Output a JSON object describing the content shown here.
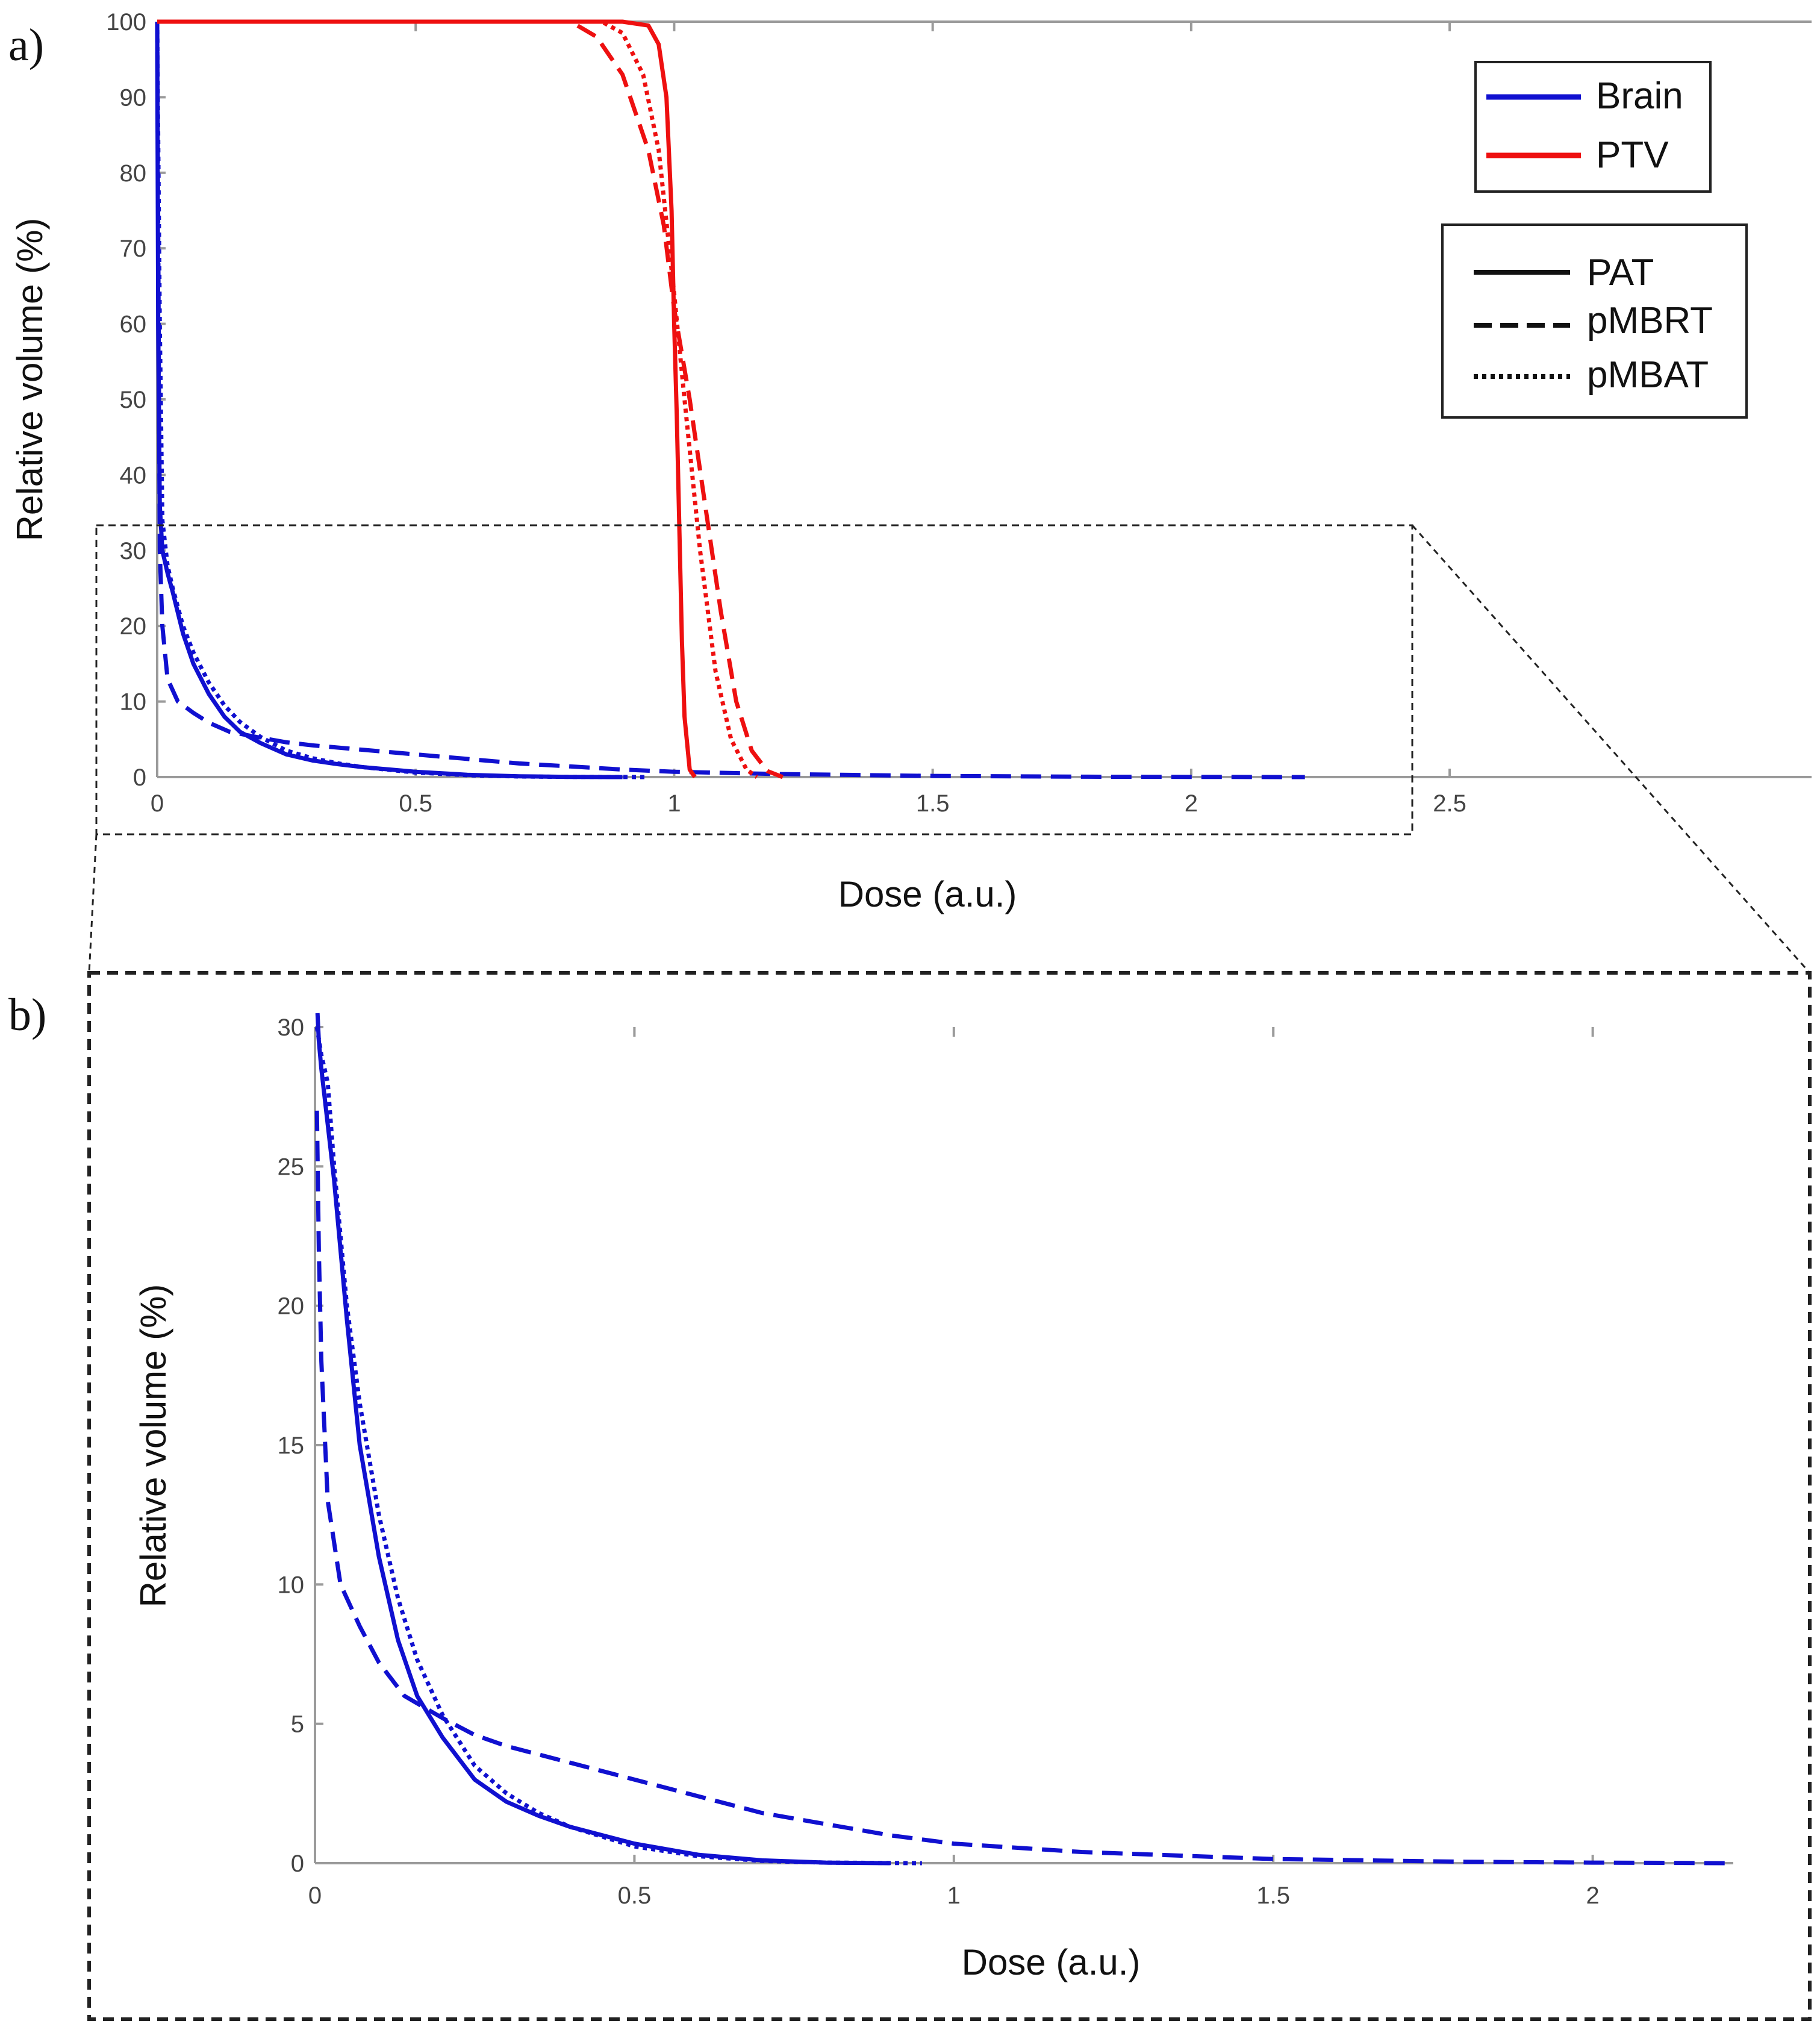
{
  "chart_data": [
    {
      "panel": "a)",
      "type": "line",
      "xlabel": "Dose (a.u.)",
      "ylabel": "Relative volume (%)",
      "xlim": [
        0,
        3.2
      ],
      "ylim": [
        0,
        100
      ],
      "xticks": [
        {
          "v": 0,
          "label": "0"
        },
        {
          "v": 0.5,
          "label": "0.5"
        },
        {
          "v": 1,
          "label": "1"
        },
        {
          "v": 1.5,
          "label": "1.5"
        },
        {
          "v": 2,
          "label": "2"
        },
        {
          "v": 2.5,
          "label": "2.5"
        }
      ],
      "yticks": [
        {
          "v": 0,
          "label": "0"
        },
        {
          "v": 10,
          "label": "10"
        },
        {
          "v": 20,
          "label": "20"
        },
        {
          "v": 30,
          "label": "30"
        },
        {
          "v": 40,
          "label": "40"
        },
        {
          "v": 50,
          "label": "50"
        },
        {
          "v": 60,
          "label": "60"
        },
        {
          "v": 70,
          "label": "70"
        },
        {
          "v": 80,
          "label": "80"
        },
        {
          "v": 90,
          "label": "90"
        },
        {
          "v": 100,
          "label": "100"
        }
      ],
      "legend_structures": [
        {
          "name": "Brain",
          "color": "#1010d0"
        },
        {
          "name": "PTV",
          "color": "#ee1010"
        }
      ],
      "legend_modalities": [
        {
          "name": "PAT",
          "style": "solid"
        },
        {
          "name": "pMBRT",
          "style": "dashed"
        },
        {
          "name": "pMBAT",
          "style": "dotted"
        }
      ],
      "zoom_region": {
        "x": [
          -0.1,
          2.27
        ],
        "y": [
          -8,
          33
        ]
      },
      "series": [
        {
          "name": "Brain PAT",
          "color": "#1010d0",
          "style": "solid",
          "x": [
            0,
            0.002,
            0.005,
            0.01,
            0.02,
            0.03,
            0.05,
            0.07,
            0.1,
            0.13,
            0.16,
            0.2,
            0.25,
            0.3,
            0.35,
            0.4,
            0.5,
            0.6,
            0.7,
            0.8,
            0.9
          ],
          "y": [
            100,
            60,
            36,
            30,
            27,
            24.5,
            19,
            15,
            11,
            8,
            6,
            4.5,
            3,
            2.2,
            1.7,
            1.3,
            0.7,
            0.3,
            0.1,
            0.02,
            0
          ]
        },
        {
          "name": "Brain pMBRT",
          "color": "#1010d0",
          "style": "dashed",
          "x": [
            0,
            0.005,
            0.01,
            0.02,
            0.04,
            0.07,
            0.1,
            0.14,
            0.2,
            0.25,
            0.3,
            0.4,
            0.5,
            0.6,
            0.7,
            0.8,
            0.9,
            1.0,
            1.2,
            1.5,
            1.8,
            2.0,
            2.22
          ],
          "y": [
            100,
            30,
            20,
            13,
            10,
            8.5,
            7.2,
            6,
            5.2,
            4.6,
            4.2,
            3.6,
            3,
            2.4,
            1.8,
            1.4,
            1,
            0.7,
            0.4,
            0.15,
            0.05,
            0.02,
            0
          ]
        },
        {
          "name": "Brain pMBAT",
          "color": "#1010d0",
          "style": "dotted",
          "x": [
            0,
            0.005,
            0.01,
            0.02,
            0.03,
            0.05,
            0.07,
            0.1,
            0.13,
            0.16,
            0.2,
            0.25,
            0.3,
            0.35,
            0.4,
            0.5,
            0.6,
            0.7,
            0.8,
            0.95
          ],
          "y": [
            100,
            60,
            34,
            28,
            25,
            20,
            16.5,
            12.5,
            9.5,
            7.3,
            5.3,
            3.5,
            2.5,
            1.8,
            1.3,
            0.6,
            0.25,
            0.08,
            0.02,
            0
          ]
        },
        {
          "name": "PTV PAT",
          "color": "#ee1010",
          "style": "solid",
          "x": [
            0,
            0.9,
            0.95,
            0.97,
            0.985,
            0.995,
            1.0,
            1.005,
            1.01,
            1.015,
            1.02,
            1.03,
            1.04
          ],
          "y": [
            100,
            100,
            99.5,
            97,
            90,
            75,
            60,
            48,
            33,
            18,
            8,
            1,
            0
          ]
        },
        {
          "name": "PTV pMBRT",
          "color": "#ee1010",
          "style": "dashed",
          "x": [
            0,
            0.8,
            0.85,
            0.9,
            0.95,
            0.98,
            1.0,
            1.03,
            1.06,
            1.09,
            1.12,
            1.15,
            1.18,
            1.21
          ],
          "y": [
            100,
            100,
            98,
            93,
            83,
            73,
            62,
            50,
            36,
            22,
            10,
            3.5,
            0.8,
            0
          ]
        },
        {
          "name": "PTV pMBAT",
          "color": "#ee1010",
          "style": "dotted",
          "x": [
            0,
            0.86,
            0.9,
            0.94,
            0.97,
            1.0,
            1.02,
            1.05,
            1.08,
            1.11,
            1.14,
            1.16
          ],
          "y": [
            100,
            100,
            98.5,
            93,
            83,
            64,
            50,
            30,
            14,
            5,
            1,
            0
          ]
        }
      ]
    },
    {
      "panel": "b)",
      "type": "line",
      "xlabel": "Dose (a.u.)",
      "ylabel": "Relative volume (%)",
      "xlim": [
        0,
        2.22
      ],
      "ylim": [
        0,
        30
      ],
      "xticks": [
        {
          "v": 0,
          "label": "0"
        },
        {
          "v": 0.5,
          "label": "0.5"
        },
        {
          "v": 1,
          "label": "1"
        },
        {
          "v": 1.5,
          "label": "1.5"
        },
        {
          "v": 2,
          "label": "2"
        }
      ],
      "yticks": [
        {
          "v": 0,
          "label": "0"
        },
        {
          "v": 5,
          "label": "5"
        },
        {
          "v": 10,
          "label": "10"
        },
        {
          "v": 15,
          "label": "15"
        },
        {
          "v": 20,
          "label": "20"
        },
        {
          "v": 25,
          "label": "25"
        },
        {
          "v": 30,
          "label": "30"
        }
      ],
      "series": [
        {
          "name": "Brain PAT",
          "color": "#1010d0",
          "style": "solid",
          "x": [
            0.004,
            0.006,
            0.01,
            0.02,
            0.03,
            0.05,
            0.07,
            0.1,
            0.13,
            0.16,
            0.2,
            0.25,
            0.3,
            0.35,
            0.4,
            0.5,
            0.6,
            0.7,
            0.8,
            0.9
          ],
          "y": [
            30.5,
            29.5,
            28.5,
            26.5,
            24.5,
            19.5,
            15,
            11,
            8,
            6,
            4.5,
            3,
            2.2,
            1.7,
            1.3,
            0.7,
            0.3,
            0.1,
            0.02,
            0
          ]
        },
        {
          "name": "Brain pMBRT",
          "color": "#1010d0",
          "style": "dashed",
          "x": [
            0.003,
            0.006,
            0.01,
            0.02,
            0.04,
            0.07,
            0.1,
            0.14,
            0.2,
            0.25,
            0.3,
            0.4,
            0.5,
            0.6,
            0.7,
            0.8,
            0.9,
            1.0,
            1.2,
            1.5,
            1.8,
            2.0,
            2.22
          ],
          "y": [
            27,
            22,
            18,
            13,
            10,
            8.5,
            7.2,
            6,
            5.2,
            4.6,
            4.2,
            3.6,
            3,
            2.4,
            1.8,
            1.4,
            1,
            0.7,
            0.4,
            0.15,
            0.05,
            0.02,
            0
          ]
        },
        {
          "name": "Brain pMBAT",
          "color": "#1010d0",
          "style": "dotted",
          "x": [
            0.003,
            0.01,
            0.02,
            0.03,
            0.05,
            0.07,
            0.1,
            0.13,
            0.16,
            0.2,
            0.25,
            0.3,
            0.35,
            0.4,
            0.5,
            0.6,
            0.7,
            0.8,
            0.95
          ],
          "y": [
            30,
            29,
            28,
            25,
            20,
            16.5,
            12.5,
            9.5,
            7.3,
            5.3,
            3.5,
            2.5,
            1.8,
            1.3,
            0.6,
            0.25,
            0.08,
            0.02,
            0
          ]
        }
      ]
    }
  ]
}
